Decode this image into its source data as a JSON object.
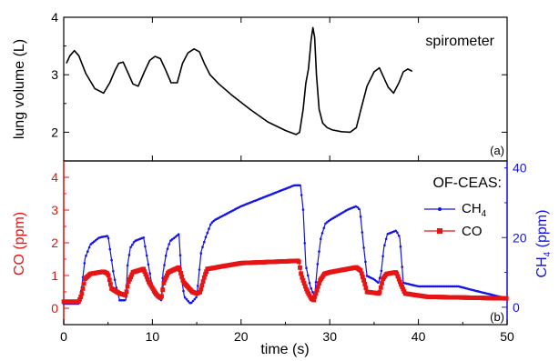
{
  "chart_data": [
    {
      "type": "line",
      "panel_label": "(a)",
      "annotation": "spirometer",
      "ylabel": "lung volume (L)",
      "xlim": [
        0,
        50
      ],
      "ylim": [
        1.5,
        4
      ],
      "yticks": [
        "2",
        "3",
        "4"
      ],
      "colors": {
        "line": "#000000"
      },
      "series": [
        {
          "x": [
            0.3,
            0.7,
            1.2,
            1.7,
            2.5,
            3.5,
            4.5,
            5.2,
            5.8,
            6.2,
            6.7,
            7.2,
            7.8,
            8.4,
            9.1,
            9.7,
            10.3,
            10.9,
            11.5,
            12.1,
            12.8,
            13.4,
            14.0,
            14.7,
            15.3,
            15.9,
            16.5,
            17.5,
            19.0,
            21.0,
            23.0,
            25.0,
            26.2,
            26.6,
            27.0,
            27.3,
            27.6,
            27.9,
            28.1,
            28.3,
            28.5,
            28.8,
            29.2,
            29.7,
            30.3,
            31.3,
            32.3,
            33.0,
            33.6,
            34.2,
            35.0,
            35.6,
            36.1,
            36.6,
            37.2,
            37.8,
            38.3,
            38.8,
            39.3
          ],
          "y": [
            3.2,
            3.33,
            3.42,
            3.33,
            3.02,
            2.76,
            2.68,
            2.86,
            3.08,
            3.2,
            3.22,
            3.05,
            2.84,
            2.8,
            3.05,
            3.25,
            3.32,
            3.28,
            3.08,
            2.86,
            2.86,
            3.2,
            3.38,
            3.45,
            3.4,
            3.18,
            3.0,
            2.84,
            2.64,
            2.4,
            2.18,
            2.03,
            1.96,
            2.0,
            2.4,
            2.85,
            3.1,
            3.6,
            3.82,
            3.65,
            3.0,
            2.4,
            2.16,
            2.08,
            2.04,
            2.01,
            2.0,
            2.08,
            2.45,
            2.8,
            3.05,
            3.12,
            2.95,
            2.78,
            2.68,
            2.86,
            3.05,
            3.1,
            3.06
          ]
        }
      ]
    },
    {
      "type": "line",
      "panel_label": "(b)",
      "legend_title": "OF-CEAS:",
      "legend_position": "top-right",
      "xlabel": "time (s)",
      "xlim": [
        0,
        50
      ],
      "xticks": [
        "0",
        "10",
        "20",
        "30",
        "40",
        "50"
      ],
      "ylabel_left": "CO (ppm)",
      "ylim_left": [
        -0.5,
        4.5
      ],
      "yticks_left": [
        "0",
        "1",
        "2",
        "3",
        "4"
      ],
      "ylabel_right": "CH",
      "ylabel_right_sub": "4",
      "ylabel_right_suffix": " (ppm)",
      "ylim_right": [
        -5,
        42
      ],
      "yticks_right": [
        "0",
        "20",
        "40"
      ],
      "colors": {
        "ch4": "#1414e6",
        "co": "#e61414"
      },
      "series": [
        {
          "name": "CH",
          "name_sub": "4",
          "axis": "right",
          "x": [
            0.0,
            1.7,
            2.0,
            2.4,
            3.0,
            4.0,
            5.0,
            5.6,
            5.9,
            6.3,
            7.0,
            7.2,
            7.5,
            8.0,
            9.0,
            9.7,
            10.1,
            11.0,
            11.2,
            11.6,
            12.0,
            13.0,
            13.3,
            13.6,
            14.3,
            15.0,
            15.5,
            16.0,
            16.3,
            16.6,
            17.0,
            20.0,
            23.0,
            26.0,
            26.7,
            27.0,
            27.3,
            27.8,
            28.3,
            28.6,
            29.0,
            29.5,
            30.0,
            31.0,
            32.0,
            33.0,
            33.4,
            33.8,
            34.2,
            35.0,
            35.5,
            35.8,
            36.1,
            36.5,
            37.5,
            37.9,
            38.3,
            40.0,
            44.5,
            46.0,
            50.0
          ],
          "y": [
            1,
            1,
            5,
            14,
            18,
            20,
            20.5,
            10,
            6,
            2,
            2,
            12,
            17,
            19,
            20,
            10,
            4,
            2,
            10,
            16,
            19,
            21,
            8,
            3,
            1,
            3,
            16,
            20,
            22,
            24,
            25,
            29,
            32,
            35,
            35,
            28,
            12,
            6,
            3,
            12,
            20,
            24,
            25,
            26.5,
            28,
            29,
            28,
            18,
            9,
            8,
            7,
            10,
            17,
            21,
            22,
            20,
            7,
            6,
            6,
            5,
            2.5
          ]
        },
        {
          "name": "CO",
          "axis": "left",
          "x": [
            0.0,
            1.7,
            2.0,
            2.4,
            3.0,
            4.5,
            5.0,
            5.4,
            6.3,
            7.0,
            7.3,
            7.8,
            9.0,
            9.6,
            10.5,
            11.0,
            11.3,
            11.8,
            13.0,
            13.5,
            14.5,
            15.0,
            15.4,
            15.9,
            16.2,
            20.0,
            26.5,
            26.8,
            27.4,
            27.9,
            28.2,
            28.5,
            28.9,
            29.4,
            30.0,
            31.0,
            33.0,
            33.5,
            33.9,
            34.2,
            35.6,
            36.0,
            36.4,
            37.5,
            38.0,
            38.5,
            41.0,
            50.0
          ],
          "y": [
            0.2,
            0.2,
            0.4,
            0.9,
            1.05,
            1.12,
            1.05,
            0.6,
            0.45,
            0.4,
            0.8,
            1.1,
            1.2,
            0.8,
            0.4,
            0.3,
            0.8,
            1.1,
            1.25,
            0.8,
            0.5,
            0.45,
            0.5,
            1.0,
            1.2,
            1.38,
            1.45,
            1.0,
            0.55,
            0.3,
            0.25,
            0.5,
            0.85,
            1.05,
            1.1,
            1.15,
            1.25,
            1.15,
            0.8,
            0.5,
            0.45,
            0.9,
            1.05,
            1.1,
            0.75,
            0.45,
            0.35,
            0.3
          ]
        }
      ]
    }
  ]
}
